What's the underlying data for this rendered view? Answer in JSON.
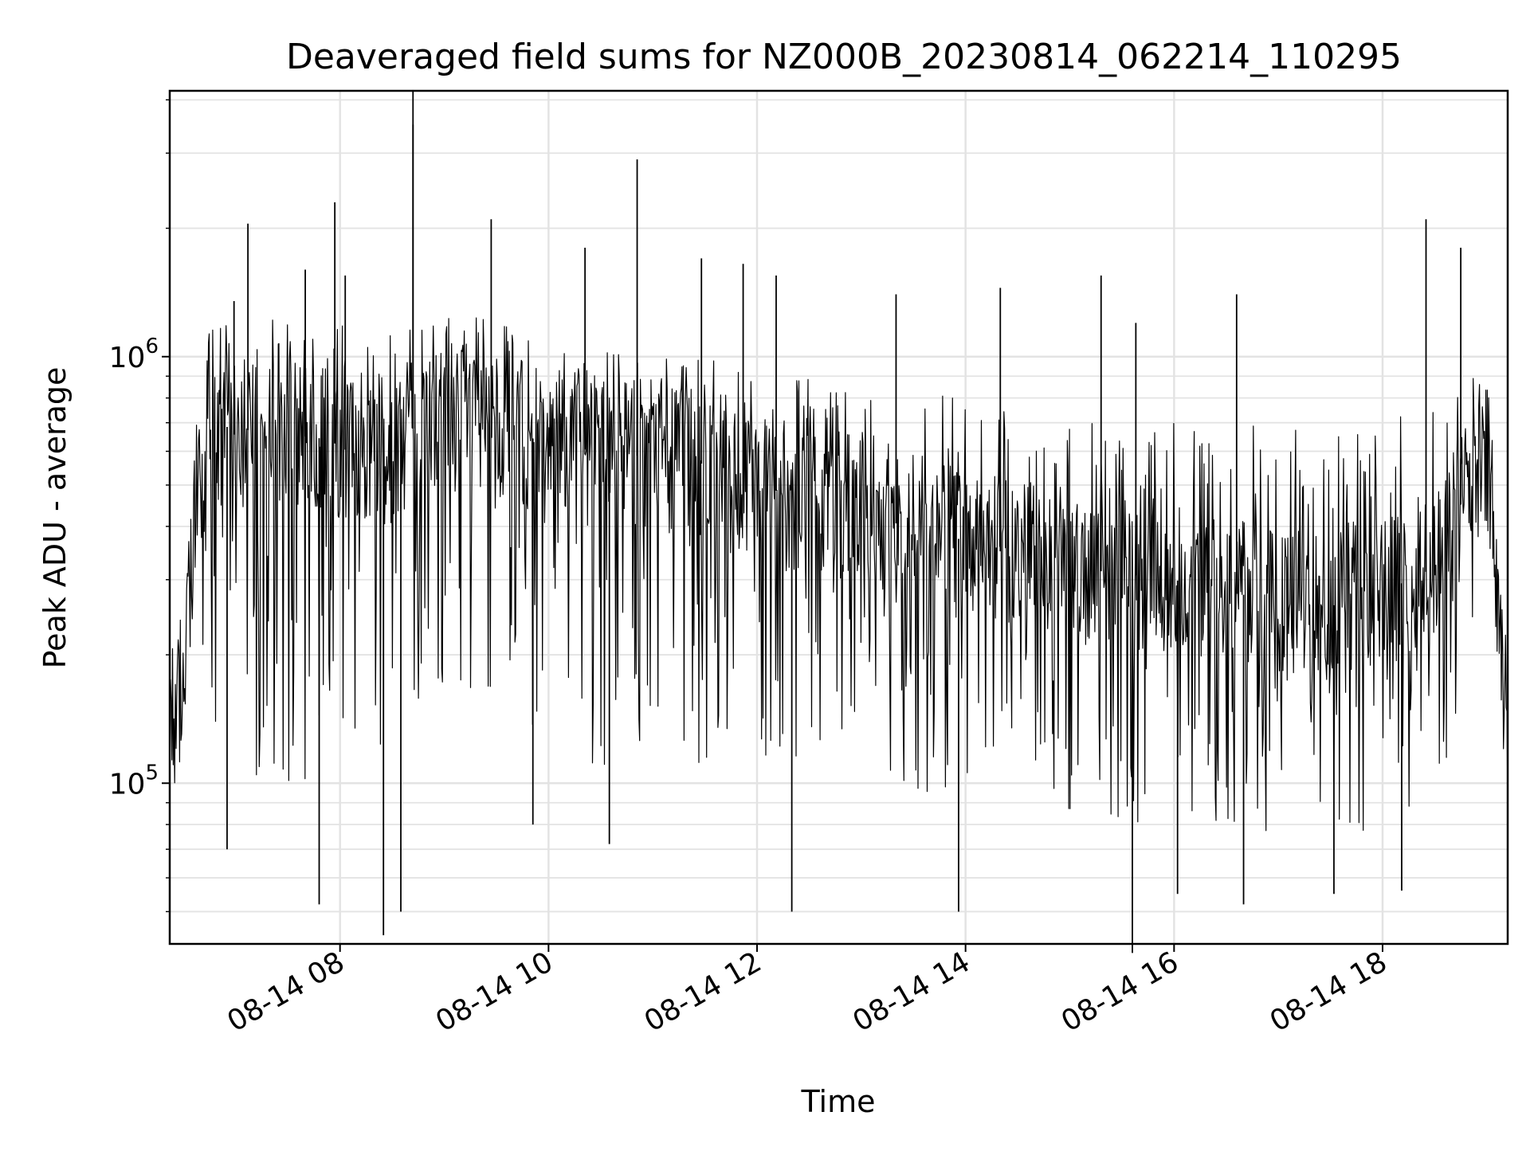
{
  "chart_data": {
    "type": "line",
    "title": "Deaveraged field sums for NZ000B_20230814_062214_110295",
    "xlabel": "Time",
    "ylabel": "Peak ADU - average",
    "y_scale": "log",
    "ylim": [
      42000,
      4200000
    ],
    "x_range": [
      "2023-08-14 06:22",
      "2023-08-14 19:12"
    ],
    "x_ticks": [
      "08-14 08",
      "08-14 10",
      "08-14 12",
      "08-14 14",
      "08-14 16",
      "08-14 18"
    ],
    "x_tick_times": [
      "2023-08-14 08:00",
      "2023-08-14 10:00",
      "2023-08-14 12:00",
      "2023-08-14 14:00",
      "2023-08-14 16:00",
      "2023-08-14 18:00"
    ],
    "y_ticks": [
      {
        "value": 100000,
        "base": "10",
        "exp": "5"
      },
      {
        "value": 1000000,
        "base": "10",
        "exp": "6"
      }
    ],
    "grid": true,
    "series": [
      {
        "color": "#000000",
        "x": [
          "2023-08-14 06:22",
          "2023-08-14 06:30",
          "2023-08-14 06:38",
          "2023-08-14 06:46",
          "2023-08-14 07:00",
          "2023-08-14 07:15",
          "2023-08-14 07:30",
          "2023-08-14 07:45",
          "2023-08-14 08:00",
          "2023-08-14 08:15",
          "2023-08-14 08:30",
          "2023-08-14 08:45",
          "2023-08-14 09:00",
          "2023-08-14 09:30",
          "2023-08-14 10:00",
          "2023-08-14 10:30",
          "2023-08-14 11:00",
          "2023-08-14 11:30",
          "2023-08-14 12:00",
          "2023-08-14 12:30",
          "2023-08-14 13:00",
          "2023-08-14 13:30",
          "2023-08-14 14:00",
          "2023-08-14 14:30",
          "2023-08-14 15:00",
          "2023-08-14 15:30",
          "2023-08-14 16:00",
          "2023-08-14 16:30",
          "2023-08-14 17:00",
          "2023-08-14 17:30",
          "2023-08-14 18:00",
          "2023-08-14 18:30",
          "2023-08-14 18:45",
          "2023-08-14 19:00",
          "2023-08-14 19:12"
        ],
        "center": [
          130000,
          180000,
          500000,
          750000,
          650000,
          700000,
          650000,
          650000,
          620000,
          550000,
          600000,
          700000,
          720000,
          700000,
          620000,
          600000,
          580000,
          560000,
          500000,
          460000,
          420000,
          400000,
          370000,
          340000,
          320000,
          310000,
          300000,
          280000,
          270000,
          260000,
          280000,
          320000,
          450000,
          600000,
          140000
        ],
        "upper": [
          170000,
          320000,
          900000,
          1200000,
          1250000,
          1250000,
          1200000,
          1200000,
          1200000,
          1150000,
          1150000,
          1250000,
          1300000,
          1200000,
          1100000,
          1050000,
          1000000,
          1000000,
          950000,
          900000,
          850000,
          820000,
          800000,
          760000,
          740000,
          720000,
          720000,
          700000,
          680000,
          660000,
          700000,
          780000,
          950000,
          1000000,
          200000
        ],
        "lower": [
          110000,
          120000,
          150000,
          110000,
          110000,
          100000,
          95000,
          90000,
          85000,
          75000,
          95000,
          140000,
          150000,
          140000,
          120000,
          110000,
          110000,
          110000,
          100000,
          95000,
          95000,
          95000,
          90000,
          85000,
          85000,
          80000,
          75000,
          75000,
          75000,
          75000,
          75000,
          80000,
          150000,
          300000,
          80000
        ],
        "spikes": [
          {
            "x": "2023-08-14 06:59",
            "y": 1350000
          },
          {
            "x": "2023-08-14 07:07",
            "y": 2050000
          },
          {
            "x": "2023-08-14 07:40",
            "y": 1600000
          },
          {
            "x": "2023-08-14 07:57",
            "y": 2300000
          },
          {
            "x": "2023-08-14 08:03",
            "y": 1550000
          },
          {
            "x": "2023-08-14 08:42",
            "y": 4200000
          },
          {
            "x": "2023-08-14 08:42",
            "y": 3500000
          },
          {
            "x": "2023-08-14 09:27",
            "y": 2100000
          },
          {
            "x": "2023-08-14 10:21",
            "y": 1800000
          },
          {
            "x": "2023-08-14 10:51",
            "y": 2900000
          },
          {
            "x": "2023-08-14 11:28",
            "y": 1700000
          },
          {
            "x": "2023-08-14 11:52",
            "y": 1650000
          },
          {
            "x": "2023-08-14 12:11",
            "y": 1550000
          },
          {
            "x": "2023-08-14 13:20",
            "y": 1400000
          },
          {
            "x": "2023-08-14 14:20",
            "y": 1450000
          },
          {
            "x": "2023-08-14 15:18",
            "y": 1550000
          },
          {
            "x": "2023-08-14 15:38",
            "y": 1200000
          },
          {
            "x": "2023-08-14 16:36",
            "y": 1400000
          },
          {
            "x": "2023-08-14 18:25",
            "y": 2100000
          },
          {
            "x": "2023-08-14 18:45",
            "y": 1800000
          }
        ],
        "dips": [
          {
            "x": "2023-08-14 06:55",
            "y": 70000
          },
          {
            "x": "2023-08-14 07:48",
            "y": 52000
          },
          {
            "x": "2023-08-14 08:25",
            "y": 44000
          },
          {
            "x": "2023-08-14 08:35",
            "y": 50000
          },
          {
            "x": "2023-08-14 09:51",
            "y": 80000
          },
          {
            "x": "2023-08-14 10:35",
            "y": 72000
          },
          {
            "x": "2023-08-14 12:20",
            "y": 50000
          },
          {
            "x": "2023-08-14 13:56",
            "y": 50000
          },
          {
            "x": "2023-08-14 15:36",
            "y": 40000
          },
          {
            "x": "2023-08-14 16:02",
            "y": 55000
          },
          {
            "x": "2023-08-14 16:40",
            "y": 52000
          },
          {
            "x": "2023-08-14 17:32",
            "y": 55000
          },
          {
            "x": "2023-08-14 18:11",
            "y": 56000
          }
        ]
      }
    ]
  }
}
